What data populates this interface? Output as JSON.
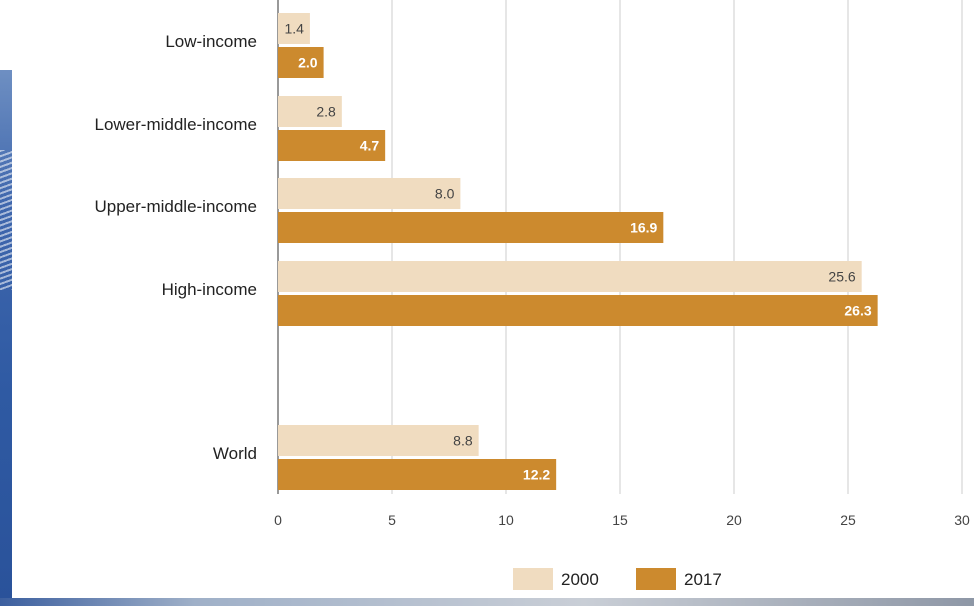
{
  "chart_data": {
    "type": "bar",
    "orientation": "horizontal",
    "categories": [
      "Low-income",
      "Lower-middle-income",
      "Upper-middle-income",
      "High-income",
      "World"
    ],
    "series": [
      {
        "name": "2000",
        "values": [
          1.4,
          2.8,
          8.0,
          25.6,
          8.8
        ],
        "labels": [
          "1.4",
          "2.8",
          "8.0",
          "25.6",
          "8.8"
        ],
        "color": "#f0dcc0"
      },
      {
        "name": "2017",
        "values": [
          2.0,
          4.7,
          16.9,
          26.3,
          12.2
        ],
        "labels": [
          "2.0",
          "4.7",
          "16.9",
          "26.3",
          "12.2"
        ],
        "color": "#cc8a2e"
      }
    ],
    "x_ticks": [
      "0",
      "5",
      "10",
      "15",
      "20",
      "25",
      "30"
    ],
    "xlim": [
      0,
      30
    ],
    "grid": "vertical",
    "legend": "bottom"
  }
}
